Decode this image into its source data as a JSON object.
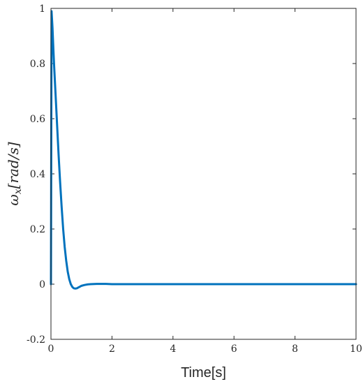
{
  "chart_data": {
    "type": "line",
    "title": "",
    "xlabel": "Time[s]",
    "ylabel": "ω",
    "ylabel_subscript": "x",
    "ylabel_unit": "[rad/s]",
    "xlim": [
      0,
      10
    ],
    "ylim": [
      -0.2,
      1
    ],
    "xticks": [
      0,
      2,
      4,
      6,
      8,
      10
    ],
    "xtick_labels": [
      "0",
      "2",
      "4",
      "6",
      "8",
      "10"
    ],
    "yticks": [
      -0.2,
      0,
      0.2,
      0.4,
      0.6,
      0.8,
      1
    ],
    "ytick_labels": [
      "-0.2",
      "0",
      "0.2",
      "0.4",
      "0.6",
      "0.8",
      "1"
    ],
    "grid": false,
    "legend": "none",
    "series": [
      {
        "color": "#0072BD",
        "x": [
          0,
          0.02,
          0.05,
          0.08,
          0.1,
          0.15,
          0.2,
          0.25,
          0.3,
          0.35,
          0.4,
          0.45,
          0.5,
          0.55,
          0.6,
          0.65,
          0.7,
          0.75,
          0.8,
          0.85,
          0.9,
          0.95,
          1.0,
          1.1,
          1.2,
          1.3,
          1.5,
          1.8,
          2.0,
          2.5,
          3,
          4,
          5,
          6,
          7,
          8,
          9,
          10
        ],
        "y": [
          0,
          0.99,
          0.93,
          0.85,
          0.8,
          0.69,
          0.58,
          0.47,
          0.37,
          0.28,
          0.2,
          0.135,
          0.085,
          0.045,
          0.018,
          0.0,
          -0.01,
          -0.015,
          -0.016,
          -0.015,
          -0.012,
          -0.009,
          -0.006,
          -0.003,
          -0.001,
          0.0,
          0.001,
          0.001,
          0.0,
          0.0,
          0.0,
          0.0,
          0.0,
          0.0,
          0.0,
          0.0,
          0.0,
          0.0
        ]
      }
    ]
  }
}
